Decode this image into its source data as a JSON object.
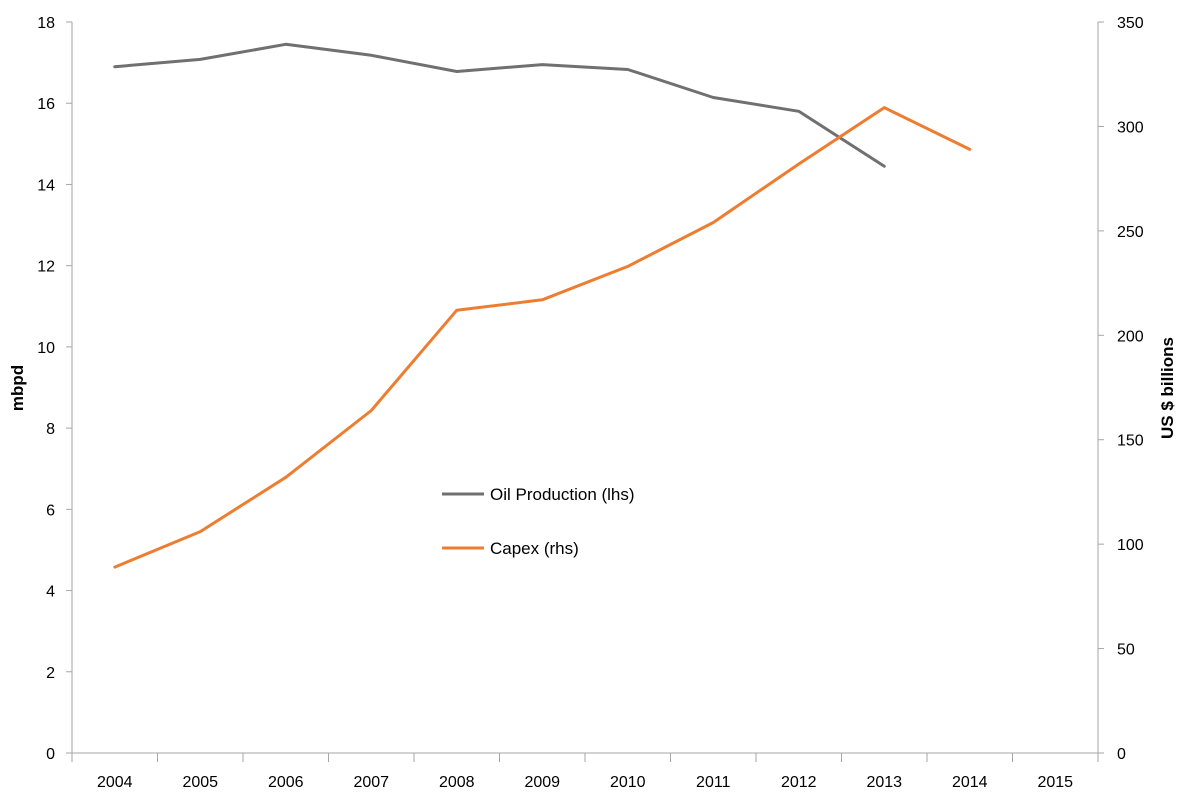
{
  "chart_data": {
    "type": "line",
    "categories": [
      "2004",
      "2005",
      "2006",
      "2007",
      "2008",
      "2009",
      "2010",
      "2011",
      "2012",
      "2013",
      "2014",
      "2015"
    ],
    "series": [
      {
        "name": "Oil Production (lhs)",
        "axis": "left",
        "color": "#707070",
        "values": [
          16.9,
          17.08,
          17.45,
          17.18,
          16.78,
          16.95,
          16.83,
          16.14,
          15.8,
          14.45,
          null,
          null
        ]
      },
      {
        "name": "Capex (rhs)",
        "axis": "right",
        "color": "#ED7D31",
        "values": [
          89,
          106,
          132,
          164,
          212,
          217,
          233,
          254,
          282,
          309,
          289,
          null
        ]
      }
    ],
    "ylabel": "mbpd",
    "y2label": "US $ billions",
    "ylim": [
      0,
      18
    ],
    "yticks": [
      0,
      2,
      4,
      6,
      8,
      10,
      12,
      14,
      16,
      18
    ],
    "y2lim": [
      0,
      350
    ],
    "y2ticks": [
      0,
      50,
      100,
      150,
      200,
      250,
      300,
      350
    ],
    "grid": false,
    "legend_position": "center"
  }
}
